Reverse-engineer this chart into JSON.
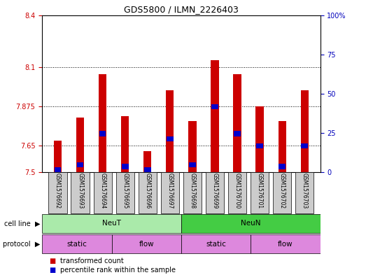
{
  "title": "GDS5800 / ILMN_2226403",
  "samples": [
    "GSM1576692",
    "GSM1576693",
    "GSM1576694",
    "GSM1576695",
    "GSM1576696",
    "GSM1576697",
    "GSM1576698",
    "GSM1576699",
    "GSM1576700",
    "GSM1576701",
    "GSM1576702",
    "GSM1576703"
  ],
  "bar_values": [
    7.68,
    7.81,
    8.06,
    7.82,
    7.62,
    7.97,
    7.79,
    8.14,
    8.06,
    7.875,
    7.79,
    7.97
  ],
  "blue_values": [
    7.51,
    7.54,
    7.72,
    7.53,
    7.51,
    7.69,
    7.54,
    7.875,
    7.72,
    7.65,
    7.53,
    7.65
  ],
  "ymin": 7.5,
  "ymax": 8.4,
  "yticks": [
    7.5,
    7.65,
    7.875,
    8.1,
    8.4
  ],
  "ytick_labels": [
    "7.5",
    "7.65",
    "7.875",
    "8.1",
    "8.4"
  ],
  "y2min": 0,
  "y2max": 100,
  "y2ticks": [
    0,
    25,
    50,
    75,
    100
  ],
  "y2tick_labels": [
    "0",
    "25",
    "50",
    "75",
    "100%"
  ],
  "bar_color": "#cc0000",
  "blue_color": "#0000cc",
  "cell_line_groups": [
    {
      "label": "NeuT",
      "start": 0,
      "end": 6,
      "color": "#aaeaaa"
    },
    {
      "label": "NeuN",
      "start": 6,
      "end": 12,
      "color": "#44cc44"
    }
  ],
  "protocol_groups": [
    {
      "label": "static",
      "start": 0,
      "end": 3
    },
    {
      "label": "flow",
      "start": 3,
      "end": 6
    },
    {
      "label": "static",
      "start": 6,
      "end": 9
    },
    {
      "label": "flow",
      "start": 9,
      "end": 12
    }
  ],
  "protocol_color": "#dd88dd",
  "legend_items": [
    {
      "label": "transformed count",
      "color": "#cc0000"
    },
    {
      "label": "percentile rank within the sample",
      "color": "#0000cc"
    }
  ],
  "bar_width": 0.35,
  "tick_color_left": "#cc0000",
  "tick_color_right": "#0000bb",
  "sample_box_color": "#cccccc",
  "label_fontsize": 7,
  "annot_fontsize": 7.5
}
